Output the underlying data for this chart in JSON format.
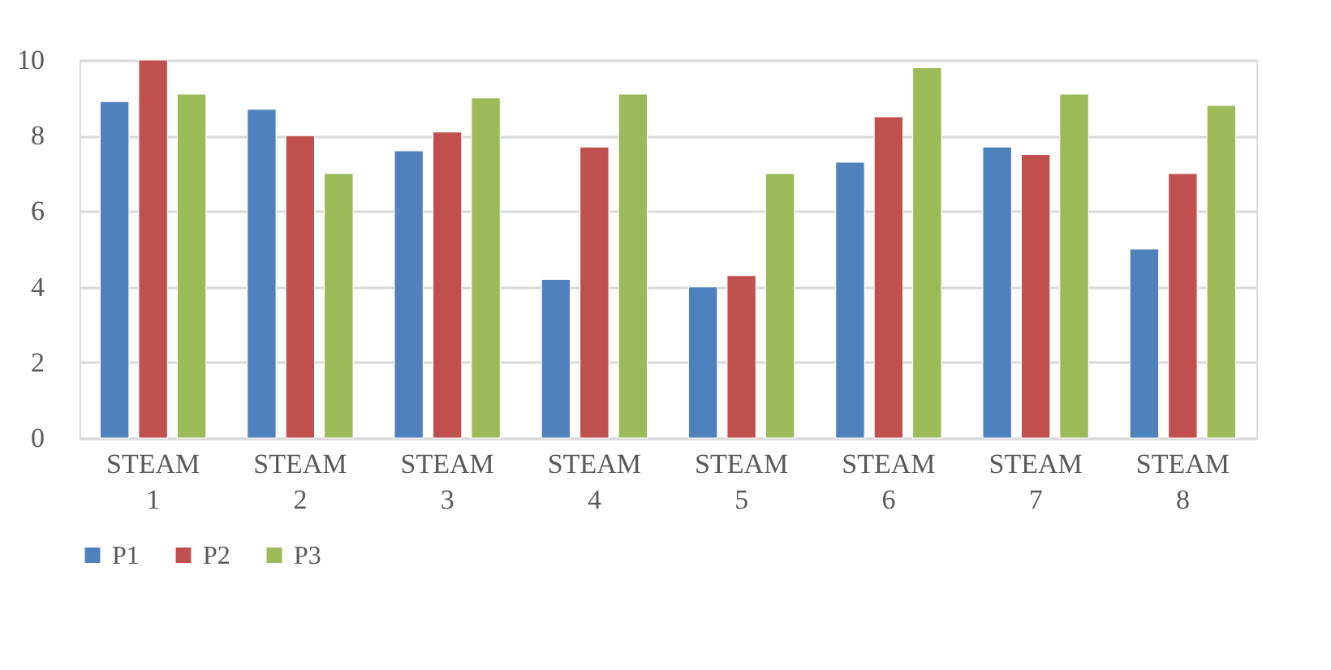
{
  "chart_data": {
    "type": "bar",
    "categories": [
      "STEAM 1",
      "STEAM 2",
      "STEAM 3",
      "STEAM 4",
      "STEAM 5",
      "STEAM 6",
      "STEAM 7",
      "STEAM 8"
    ],
    "series": [
      {
        "name": "P1",
        "color": "#4f81bd",
        "values": [
          8.9,
          8.7,
          7.6,
          4.2,
          4.0,
          7.3,
          7.7,
          5.0
        ]
      },
      {
        "name": "P2",
        "color": "#c0504d",
        "values": [
          10,
          8,
          8.1,
          7.7,
          4.3,
          8.5,
          7.5,
          7.0
        ]
      },
      {
        "name": "P3",
        "color": "#9bbb59",
        "values": [
          9.1,
          7.0,
          9.0,
          9.1,
          7.0,
          9.8,
          9.1,
          8.8
        ]
      }
    ],
    "ylim": [
      0,
      10
    ],
    "yticks": [
      0,
      2,
      4,
      6,
      8,
      10
    ],
    "grid": "y",
    "legend": "bottom"
  }
}
